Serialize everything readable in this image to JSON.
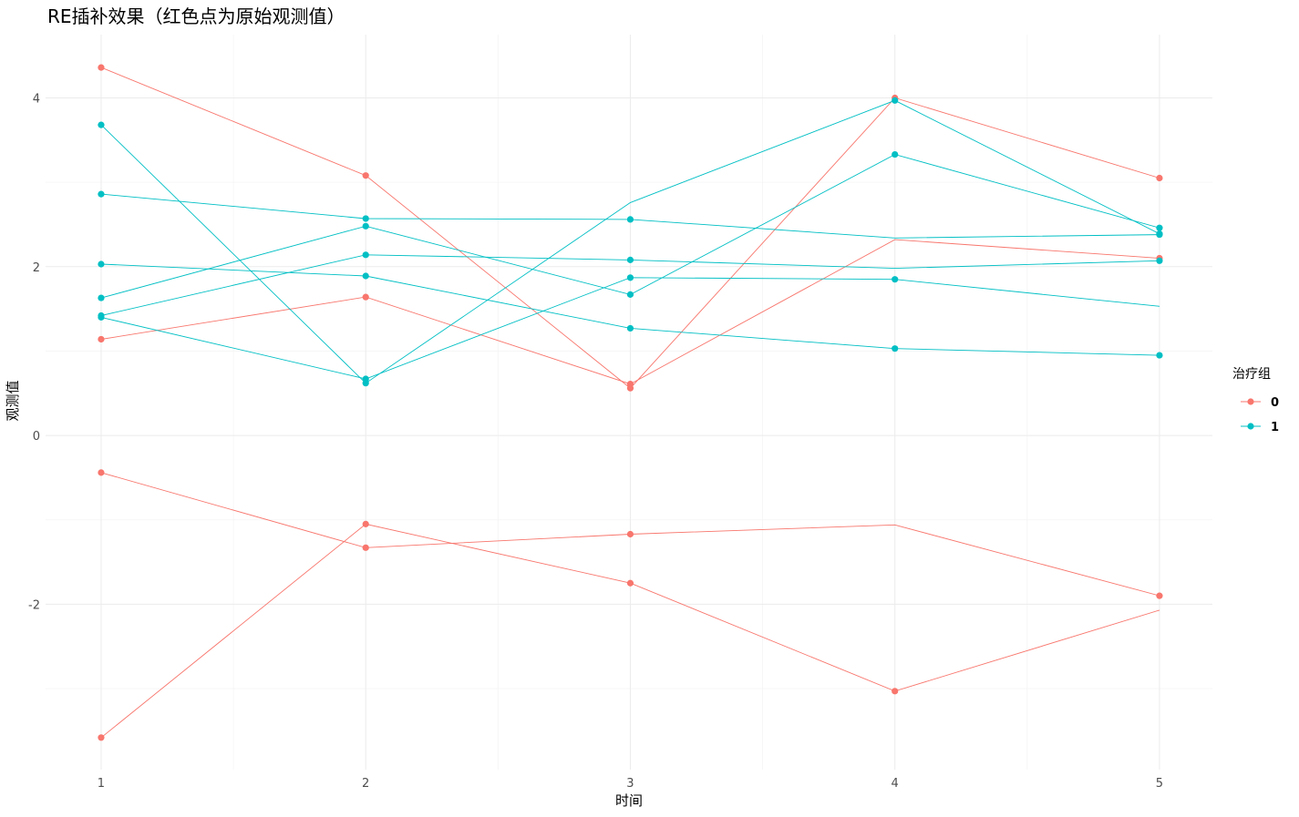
{
  "chart_data": {
    "type": "line",
    "title": "RE插补效果（红色点为原始观测值）",
    "xlabel": "时间",
    "ylabel": "观测值",
    "x": [
      1,
      2,
      3,
      4,
      5
    ],
    "x_tick_labels": [
      "1",
      "2",
      "3",
      "4",
      "5"
    ],
    "xlim": [
      0.79,
      5.2
    ],
    "ylim": [
      -3.96,
      4.75
    ],
    "y_ticks": [
      -2,
      0,
      2,
      4
    ],
    "y_tick_labels": [
      "-2",
      "0",
      "2",
      "4"
    ],
    "grid": true,
    "legend": {
      "title": "治疗组",
      "position": "right",
      "entries": [
        {
          "label": "0",
          "color": "#F8766D"
        },
        {
          "label": "1",
          "color": "#00BFC4"
        }
      ]
    },
    "series": [
      {
        "group": "0",
        "values": [
          4.36,
          3.08,
          0.56,
          4.0,
          3.05
        ],
        "observed": [
          true,
          true,
          true,
          true,
          true
        ]
      },
      {
        "group": "0",
        "values": [
          1.14,
          1.64,
          0.61,
          2.32,
          2.1
        ],
        "observed": [
          true,
          true,
          true,
          false,
          true
        ]
      },
      {
        "group": "0",
        "values": [
          -0.44,
          -1.33,
          -1.17,
          -1.06,
          -1.9
        ],
        "observed": [
          true,
          true,
          true,
          false,
          true
        ]
      },
      {
        "group": "0",
        "values": [
          -3.58,
          -1.05,
          -1.75,
          -3.03,
          -2.07
        ],
        "observed": [
          true,
          true,
          true,
          true,
          false
        ]
      },
      {
        "group": "1",
        "values": [
          3.68,
          0.62,
          2.76,
          3.97,
          2.39
        ],
        "observed": [
          true,
          true,
          false,
          true,
          true
        ]
      },
      {
        "group": "1",
        "values": [
          2.86,
          2.57,
          2.56,
          2.34,
          2.38
        ],
        "observed": [
          true,
          true,
          true,
          false,
          true
        ]
      },
      {
        "group": "1",
        "values": [
          1.63,
          2.48,
          1.67,
          3.33,
          2.46
        ],
        "observed": [
          true,
          true,
          true,
          true,
          true
        ]
      },
      {
        "group": "1",
        "values": [
          2.03,
          1.89,
          1.27,
          1.03,
          0.95
        ],
        "observed": [
          true,
          true,
          true,
          true,
          true
        ]
      },
      {
        "group": "1",
        "values": [
          1.42,
          2.14,
          2.08,
          1.98,
          2.07
        ],
        "observed": [
          true,
          true,
          true,
          false,
          true
        ]
      },
      {
        "group": "1",
        "values": [
          1.4,
          0.67,
          1.87,
          1.85,
          1.53
        ],
        "observed": [
          true,
          true,
          true,
          true,
          false
        ]
      }
    ]
  }
}
